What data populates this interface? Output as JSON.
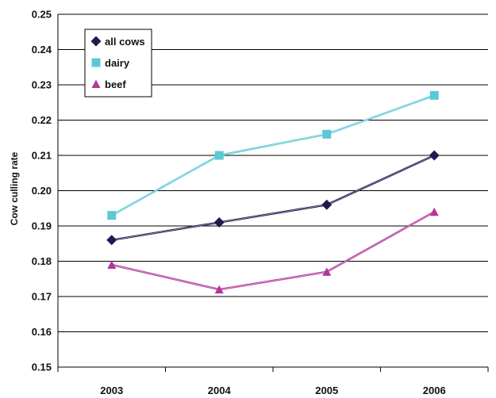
{
  "chart_data": {
    "type": "line",
    "title": "",
    "xlabel": "",
    "ylabel": "Cow culling rate",
    "categories": [
      "2003",
      "2004",
      "2005",
      "2006"
    ],
    "ylim": [
      0.15,
      0.25
    ],
    "yticks": [
      "0.15",
      "0.16",
      "0.17",
      "0.18",
      "0.19",
      "0.20",
      "0.21",
      "0.22",
      "0.23",
      "0.24",
      "0.25"
    ],
    "grid": true,
    "legend_position": "top-left",
    "series": [
      {
        "name": "all cows",
        "values": [
          0.186,
          0.191,
          0.196,
          0.21
        ],
        "color": "#1f1a4f",
        "marker": "diamond"
      },
      {
        "name": "dairy",
        "values": [
          0.193,
          0.21,
          0.216,
          0.227
        ],
        "color": "#5bc8d6",
        "marker": "square"
      },
      {
        "name": "beef",
        "values": [
          0.179,
          0.172,
          0.177,
          0.194
        ],
        "color": "#b1379a",
        "marker": "triangle"
      }
    ]
  }
}
